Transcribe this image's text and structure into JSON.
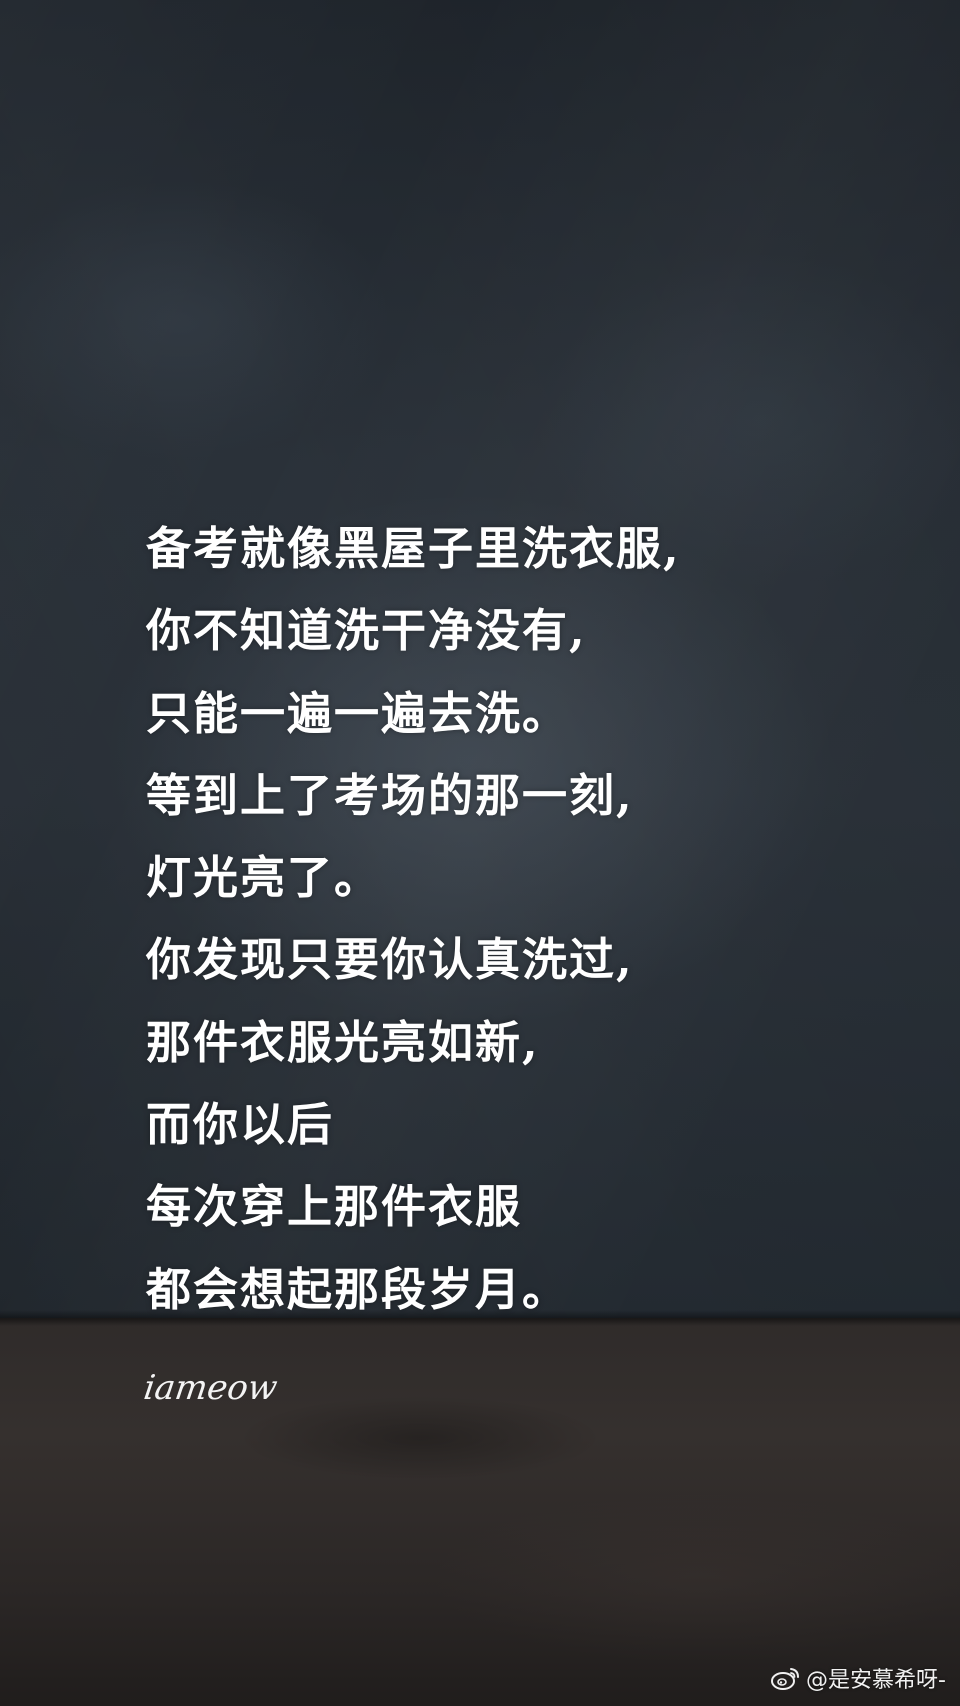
{
  "quote": {
    "lines": [
      "备考就像黑屋子里洗衣服,",
      "你不知道洗干净没有,",
      "只能一遍一遍去洗。",
      "等到上了考场的那一刻,",
      "灯光亮了。",
      "你发现只要你认真洗过,",
      "那件衣服光亮如新,",
      "而你以后",
      "每次穿上那件衣服",
      "都会想起那段岁月。"
    ]
  },
  "signature": {
    "text": "iameow"
  },
  "watermark": {
    "icon": "weibo-icon",
    "text": "@是安慕希呀-"
  },
  "colors": {
    "wall": "#2a3139",
    "floor": "#322d2b",
    "text": "#ffffff"
  }
}
